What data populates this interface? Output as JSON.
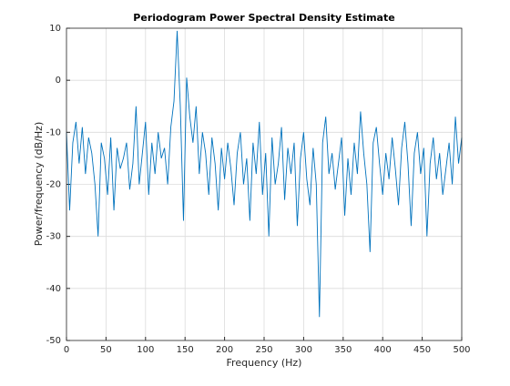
{
  "chart_data": {
    "type": "line",
    "title": "Periodogram Power Spectral Density Estimate",
    "xlabel": "Frequency (Hz)",
    "ylabel": "Power/frequency (dB/Hz)",
    "xlim": [
      0,
      500
    ],
    "ylim": [
      -50,
      10
    ],
    "xticks": [
      0,
      50,
      100,
      150,
      200,
      250,
      300,
      350,
      400,
      450,
      500
    ],
    "yticks": [
      -50,
      -40,
      -30,
      -20,
      -10,
      0,
      10
    ],
    "grid": true,
    "x": [
      0,
      4,
      8,
      12,
      16,
      20,
      24,
      28,
      32,
      36,
      40,
      44,
      48,
      52,
      56,
      60,
      64,
      68,
      72,
      76,
      80,
      84,
      88,
      92,
      96,
      100,
      104,
      108,
      112,
      116,
      120,
      124,
      128,
      132,
      136,
      140,
      144,
      148,
      152,
      156,
      160,
      164,
      168,
      172,
      176,
      180,
      184,
      188,
      192,
      196,
      200,
      204,
      208,
      212,
      216,
      220,
      224,
      228,
      232,
      236,
      240,
      244,
      248,
      252,
      256,
      260,
      264,
      268,
      272,
      276,
      280,
      284,
      288,
      292,
      296,
      300,
      304,
      308,
      312,
      316,
      320,
      324,
      328,
      332,
      336,
      340,
      344,
      348,
      352,
      356,
      360,
      364,
      368,
      372,
      376,
      380,
      384,
      388,
      392,
      396,
      400,
      404,
      408,
      412,
      416,
      420,
      424,
      428,
      432,
      436,
      440,
      444,
      448,
      452,
      456,
      460,
      464,
      468,
      472,
      476,
      480,
      484,
      488,
      492,
      496,
      500
    ],
    "series": [
      {
        "color": "#0072bd",
        "values": [
          -10,
          -25,
          -12,
          -8,
          -16,
          -9,
          -18,
          -11,
          -14,
          -20,
          -30,
          -12,
          -15,
          -22,
          -11,
          -25,
          -13,
          -17,
          -15,
          -12,
          -21,
          -16,
          -5,
          -20,
          -14,
          -8,
          -22,
          -12,
          -18,
          -10,
          -15,
          -13,
          -20,
          -9,
          -4,
          9.5,
          -5,
          -27,
          0.5,
          -7,
          -12,
          -5,
          -18,
          -10,
          -14,
          -22,
          -11,
          -16,
          -25,
          -13,
          -19,
          -12,
          -17,
          -24,
          -14,
          -10,
          -20,
          -15,
          -27,
          -12,
          -18,
          -8,
          -22,
          -14,
          -30,
          -11,
          -20,
          -16,
          -9,
          -23,
          -13,
          -18,
          -12,
          -28,
          -15,
          -10,
          -19,
          -24,
          -13,
          -20,
          -45.5,
          -12,
          -7,
          -18,
          -14,
          -21,
          -16,
          -11,
          -26,
          -15,
          -22,
          -12,
          -18,
          -6,
          -14,
          -20,
          -33,
          -12,
          -9,
          -16,
          -22,
          -14,
          -19,
          -11,
          -17,
          -24,
          -13,
          -8,
          -16,
          -28,
          -14,
          -10,
          -18,
          -13,
          -30,
          -16,
          -11,
          -19,
          -14,
          -22,
          -17,
          -12,
          -20,
          -7,
          -16,
          -11
        ]
      }
    ]
  }
}
